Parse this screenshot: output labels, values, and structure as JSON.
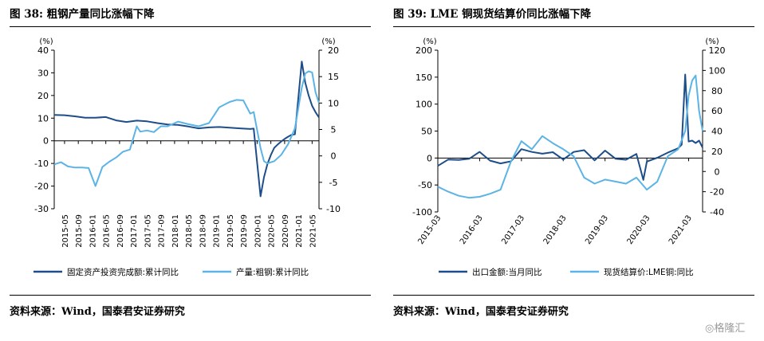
{
  "chart_data": [
    {
      "type": "line",
      "title": "图 38: 粗钢产量同比涨幅下降",
      "source": "资料来源：Wind，国泰君安证券研究",
      "left_axis_label": "(%)",
      "right_axis_label": "(%)",
      "ylim_left": [
        -30,
        40
      ],
      "yticks_left": [
        -30,
        -20,
        -10,
        0,
        10,
        20,
        30,
        40
      ],
      "ylim_right": [
        -10,
        20
      ],
      "yticks_right": [
        -10,
        -5,
        0,
        5,
        10,
        15,
        20
      ],
      "x_ticks": [
        "2015-05",
        "2015-09",
        "2016-01",
        "2016-05",
        "2016-09",
        "2017-01",
        "2017-05",
        "2017-09",
        "2018-01",
        "2018-05",
        "2018-09",
        "2019-01",
        "2019-05",
        "2019-09",
        "2020-01",
        "2020-05",
        "2020-09",
        "2021-01",
        "2021-05"
      ],
      "legend_position": "bottom",
      "grid": false,
      "series": [
        {
          "name": "固定资产投资完成额:累计同比",
          "axis": "left",
          "color": "#1d4e89",
          "x": [
            "2015-02",
            "2015-05",
            "2015-08",
            "2015-11",
            "2016-02",
            "2016-05",
            "2016-08",
            "2016-11",
            "2017-02",
            "2017-05",
            "2017-08",
            "2017-11",
            "2018-02",
            "2018-05",
            "2018-08",
            "2018-11",
            "2019-02",
            "2019-05",
            "2019-08",
            "2019-11",
            "2019-12",
            "2020-02",
            "2020-03",
            "2020-04",
            "2020-05",
            "2020-06",
            "2020-07",
            "2020-08",
            "2020-09",
            "2020-10",
            "2020-11",
            "2020-12",
            "2021-02",
            "2021-03",
            "2021-04",
            "2021-05",
            "2021-06",
            "2021-07"
          ],
          "values": [
            11.4,
            11.3,
            10.8,
            10.2,
            10.2,
            10.5,
            9.0,
            8.3,
            8.9,
            8.6,
            7.8,
            7.2,
            7.0,
            6.3,
            5.5,
            5.9,
            6.1,
            5.8,
            5.5,
            5.2,
            5.4,
            -24.5,
            -16.1,
            -10.3,
            -6.3,
            -3.1,
            -1.6,
            -0.3,
            0.8,
            1.8,
            2.6,
            2.9,
            35.0,
            25.6,
            19.9,
            15.4,
            12.6,
            10.3
          ]
        },
        {
          "name": "产量:粗钢:累计同比",
          "axis": "right",
          "color": "#5bb4e5",
          "x": [
            "2015-02",
            "2015-04",
            "2015-06",
            "2015-08",
            "2015-10",
            "2015-12",
            "2016-02",
            "2016-04",
            "2016-06",
            "2016-08",
            "2016-10",
            "2016-12",
            "2017-02",
            "2017-03",
            "2017-05",
            "2017-07",
            "2017-09",
            "2017-11",
            "2018-02",
            "2018-05",
            "2018-08",
            "2018-11",
            "2019-02",
            "2019-05",
            "2019-07",
            "2019-09",
            "2019-11",
            "2019-12",
            "2020-02",
            "2020-03",
            "2020-04",
            "2020-06",
            "2020-08",
            "2020-10",
            "2020-12",
            "2021-02",
            "2021-03",
            "2021-04",
            "2021-05",
            "2021-06",
            "2021-07"
          ],
          "values": [
            -1.6,
            -1.2,
            -2.0,
            -2.2,
            -2.2,
            -2.3,
            -5.7,
            -2.1,
            -1.1,
            -0.3,
            0.8,
            1.2,
            5.6,
            4.6,
            4.8,
            4.5,
            5.6,
            5.6,
            6.5,
            6.0,
            5.6,
            6.2,
            9.2,
            10.2,
            10.6,
            10.5,
            8.0,
            8.3,
            1.5,
            -1.0,
            -1.4,
            -1.0,
            0.2,
            2.2,
            5.2,
            12.9,
            15.6,
            16.0,
            15.8,
            12.0,
            10.0
          ]
        }
      ]
    },
    {
      "type": "line",
      "title": "图 39: LME 铜现货结算价同比涨幅下降",
      "source": "资料来源：Wind，国泰君安证券研究",
      "left_axis_label": "(%)",
      "right_axis_label": "(%)",
      "ylim_left": [
        -100,
        200
      ],
      "yticks_left": [
        -100,
        -50,
        0,
        50,
        100,
        150,
        200
      ],
      "ylim_right": [
        -40,
        120
      ],
      "yticks_right": [
        -40,
        -20,
        0,
        20,
        40,
        60,
        80,
        100,
        120
      ],
      "x_ticks": [
        "2015-03",
        "2016-03",
        "2017-03",
        "2018-03",
        "2019-03",
        "2020-03",
        "2021-03"
      ],
      "legend_position": "bottom",
      "grid": false,
      "series": [
        {
          "name": "出口金额:当月同比",
          "axis": "left",
          "color": "#1d4e89",
          "x": [
            "2015-03",
            "2015-06",
            "2015-09",
            "2015-12",
            "2016-03",
            "2016-06",
            "2016-09",
            "2016-12",
            "2017-03",
            "2017-06",
            "2017-09",
            "2017-12",
            "2018-03",
            "2018-06",
            "2018-09",
            "2018-12",
            "2019-03",
            "2019-06",
            "2019-09",
            "2019-12",
            "2020-02",
            "2020-03",
            "2020-06",
            "2020-09",
            "2020-12",
            "2021-01",
            "2021-02",
            "2021-03",
            "2021-04",
            "2021-05",
            "2021-06",
            "2021-07"
          ],
          "values": [
            -14.6,
            -2.8,
            -3.7,
            -1.4,
            11.5,
            -4.8,
            -10.0,
            -6.2,
            16.4,
            11.3,
            8.1,
            10.9,
            -2.7,
            11.3,
            14.5,
            -4.4,
            13.8,
            -1.3,
            -3.2,
            7.6,
            -40.6,
            -6.6,
            0.5,
            9.9,
            18.1,
            24.9,
            154.9,
            30.6,
            32.3,
            27.9,
            32.2,
            19.3
          ]
        },
        {
          "name": "现货结算价:LME铜:同比",
          "axis": "right",
          "color": "#5bb4e5",
          "x": [
            "2015-03",
            "2015-06",
            "2015-09",
            "2015-12",
            "2016-03",
            "2016-06",
            "2016-09",
            "2016-12",
            "2017-03",
            "2017-06",
            "2017-09",
            "2017-12",
            "2018-03",
            "2018-06",
            "2018-09",
            "2018-12",
            "2019-03",
            "2019-06",
            "2019-09",
            "2019-12",
            "2020-03",
            "2020-06",
            "2020-09",
            "2020-12",
            "2021-02",
            "2021-03",
            "2021-04",
            "2021-05",
            "2021-06",
            "2021-07"
          ],
          "values": [
            -15,
            -20,
            -24,
            -26,
            -25,
            -22,
            -18,
            10,
            30,
            22,
            35,
            28,
            22,
            15,
            -6,
            -12,
            -8,
            -10,
            -12,
            -6,
            -18,
            -10,
            15,
            22,
            40,
            75,
            90,
            95,
            60,
            40
          ]
        }
      ]
    }
  ]
}
